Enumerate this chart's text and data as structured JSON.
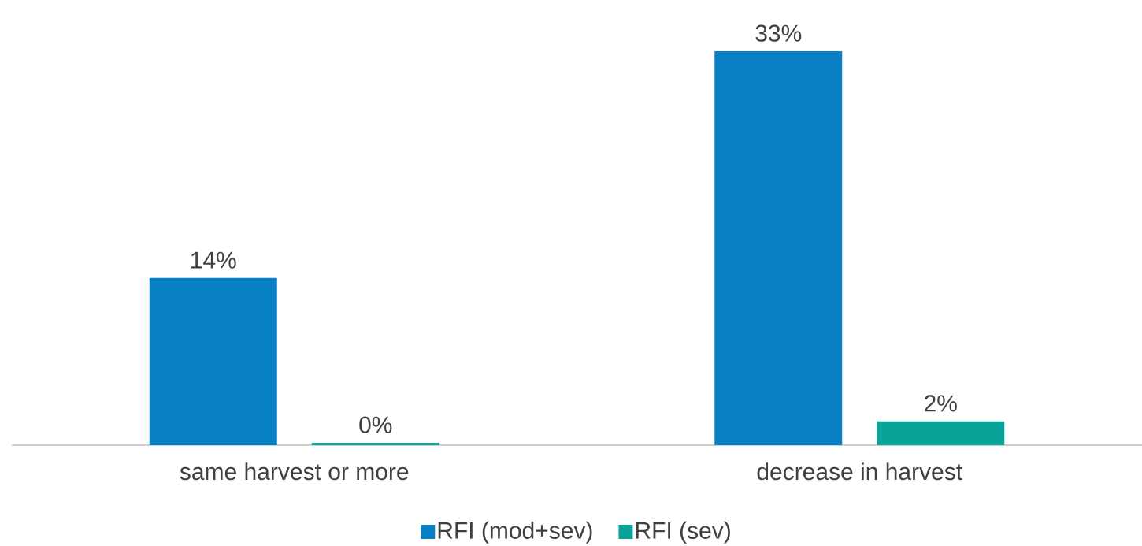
{
  "chart_data": {
    "type": "bar",
    "categories": [
      "same harvest or more",
      "decrease in harvest"
    ],
    "series": [
      {
        "name": "RFI (mod+sev)",
        "color": "#0a80c4",
        "values": [
          14,
          33
        ],
        "value_labels": [
          "14%",
          "33%"
        ]
      },
      {
        "name": "RFI (sev)",
        "color": "#0aa39a",
        "values": [
          0.2,
          2
        ],
        "value_labels": [
          "0%",
          "2%"
        ]
      }
    ],
    "legend": "bottom"
  }
}
